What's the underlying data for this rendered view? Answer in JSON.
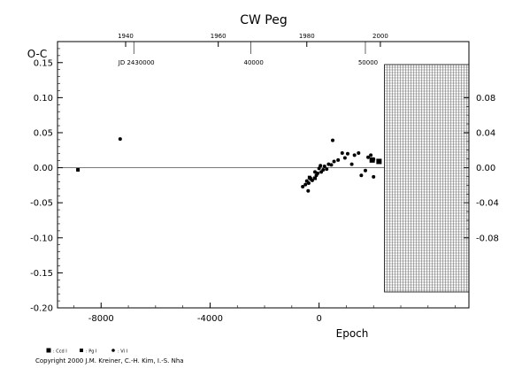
{
  "chart_data": {
    "type": "scatter",
    "title": "CW Peg",
    "ylabel": "O-C",
    "xlabel": "Epoch",
    "xlim": [
      -9600,
      5500
    ],
    "ylim": [
      -0.2,
      0.18
    ],
    "grid": false,
    "x_ticks": [
      -8000,
      -4000,
      0
    ],
    "y_ticks": [
      -0.2,
      -0.15,
      -0.1,
      -0.05,
      0.0,
      0.05,
      0.1,
      0.15
    ],
    "y_tick_labels": [
      "-0.20",
      "-0.15",
      "-0.10",
      "-0.05",
      "0.00",
      "0.05",
      "0.10",
      "0.15"
    ],
    "top_year_ticks": [
      {
        "label": "1940",
        "epoch": -7100
      },
      {
        "label": "1960",
        "epoch": -3700
      },
      {
        "label": "1980",
        "epoch": -450
      },
      {
        "label": "2000",
        "epoch": 2250
      }
    ],
    "jd_ticks": [
      {
        "label": "JD 2430000",
        "epoch": -6800
      },
      {
        "label": "40000",
        "epoch": -2500
      },
      {
        "label": "50000",
        "epoch": 1700
      }
    ],
    "right_axis": {
      "ticks": [
        0.08,
        0.04,
        0.0,
        -0.04,
        -0.08
      ],
      "tick_labels": [
        "0.08",
        "0.04",
        "0.00",
        "-0.04",
        "-0.08"
      ]
    },
    "reference_line": 0.0,
    "forecast_start_epoch": 2400,
    "legend": [
      {
        "label": "Ccd",
        "marker": "square"
      },
      {
        "label": "Pg",
        "marker": "square-small"
      },
      {
        "label": "Vi",
        "marker": "dot"
      }
    ],
    "series": [
      {
        "name": "Pg",
        "marker": "square-small",
        "points": [
          [
            -8850,
            -0.003
          ],
          [
            -350,
            -0.014
          ],
          [
            -300,
            -0.016
          ],
          [
            -150,
            -0.015
          ]
        ]
      },
      {
        "name": "Ccd",
        "marker": "square",
        "points": [
          [
            1950,
            0.011
          ],
          [
            2200,
            0.009
          ]
        ]
      },
      {
        "name": "Vi",
        "marker": "dot",
        "points": [
          [
            -7300,
            0.041
          ],
          [
            -600,
            -0.027
          ],
          [
            -500,
            -0.024
          ],
          [
            -450,
            -0.019
          ],
          [
            -400,
            -0.033
          ],
          [
            -380,
            -0.022
          ],
          [
            -250,
            -0.018
          ],
          [
            -150,
            -0.006
          ],
          [
            -100,
            -0.011
          ],
          [
            -50,
            -0.008
          ],
          [
            0,
            -0.001
          ],
          [
            50,
            0.003
          ],
          [
            80,
            -0.006
          ],
          [
            150,
            -0.003
          ],
          [
            200,
            0.002
          ],
          [
            280,
            -0.002
          ],
          [
            350,
            0.005
          ],
          [
            450,
            0.004
          ],
          [
            500,
            0.039
          ],
          [
            550,
            0.009
          ],
          [
            700,
            0.011
          ],
          [
            850,
            0.021
          ],
          [
            950,
            0.014
          ],
          [
            1050,
            0.02
          ],
          [
            1200,
            0.005
          ],
          [
            1300,
            0.018
          ],
          [
            1450,
            0.021
          ],
          [
            1550,
            -0.011
          ],
          [
            1700,
            -0.004
          ],
          [
            1800,
            0.015
          ],
          [
            1900,
            0.018
          ],
          [
            2000,
            -0.013
          ],
          [
            2000,
            0.012
          ]
        ]
      }
    ]
  },
  "copyright": "Copyright 2000 J.M. Kreiner, C.-H. Kim, I.-S. Nha"
}
